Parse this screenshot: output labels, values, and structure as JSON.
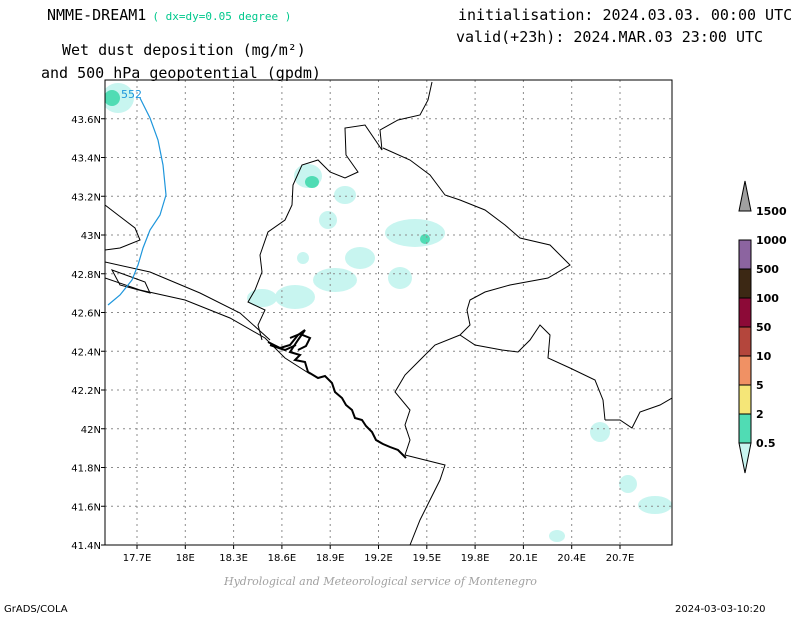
{
  "header": {
    "model_name": "NMME-DREAM1",
    "resolution": "( dx=dy=0.05 degree )",
    "title_line1": "Wet dust deposition (mg/m²)",
    "title_line2": "and 500 hPa geopotential (gpdm)",
    "initialisation": "initialisation: 2024.03.03. 00:00 UTC",
    "valid": "valid(+23h): 2024.MAR.03 23:00 UTC"
  },
  "map": {
    "lon_labels": [
      "17.7E",
      "18E",
      "18.3E",
      "18.6E",
      "18.9E",
      "19.2E",
      "19.5E",
      "19.8E",
      "20.1E",
      "20.4E",
      "20.7E"
    ],
    "lat_labels": [
      "41.4N",
      "41.6N",
      "41.8N",
      "42N",
      "42.2N",
      "42.4N",
      "42.6N",
      "42.8N",
      "43N",
      "43.2N",
      "43.4N",
      "43.6N"
    ],
    "contour_label": "552",
    "contour_color": "#1e96dc"
  },
  "legend": {
    "labels": [
      "0.5",
      "2",
      "5",
      "10",
      "50",
      "100",
      "500",
      "1000",
      "1500"
    ],
    "colors": [
      "#c8f5f0",
      "#50dcb4",
      "#f5e678",
      "#f09164",
      "#b4463c",
      "#8c0a37",
      "#3c2814",
      "#8c64a0",
      "#a0a0a0"
    ]
  },
  "footer": {
    "credit": "Hydrological and Meteorological service of Montenegro",
    "left": "GrADS/COLA",
    "right": "2024-03-03-10:20"
  }
}
